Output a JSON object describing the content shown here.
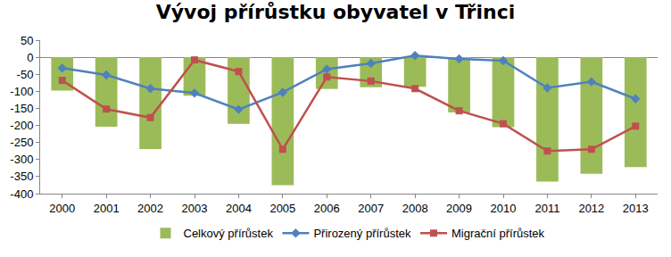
{
  "chart_data": {
    "type": "bar",
    "title": "Vývoj přírůstku obyvatel v Třinci",
    "categories": [
      "2000",
      "2001",
      "2002",
      "2003",
      "2004",
      "2005",
      "2006",
      "2007",
      "2008",
      "2009",
      "2010",
      "2011",
      "2012",
      "2013"
    ],
    "series": [
      {
        "name": "Celkový přírůstek",
        "type": "bar",
        "color": "#9bbb59",
        "values": [
          -98,
          -204,
          -269,
          -113,
          -195,
          -375,
          -93,
          -88,
          -87,
          -162,
          -205,
          -365,
          -342,
          -322
        ]
      },
      {
        "name": "Přirozený přírůstek",
        "type": "line",
        "color": "#4f81bd",
        "marker": "diamond",
        "values": [
          -32,
          -52,
          -92,
          -105,
          -153,
          -103,
          -35,
          -18,
          5,
          -5,
          -10,
          -90,
          -72,
          -122
        ]
      },
      {
        "name": "Migrační přírůstek",
        "type": "line",
        "color": "#c0504d",
        "marker": "square",
        "values": [
          -68,
          -152,
          -177,
          -8,
          -42,
          -270,
          -58,
          -70,
          -92,
          -157,
          -195,
          -275,
          -270,
          -202
        ]
      }
    ],
    "ylim": [
      -400,
      50
    ],
    "yticks": [
      -400,
      -350,
      -300,
      -250,
      -200,
      -150,
      -100,
      -50,
      0,
      50
    ],
    "grid": false,
    "legend": "bottom"
  }
}
